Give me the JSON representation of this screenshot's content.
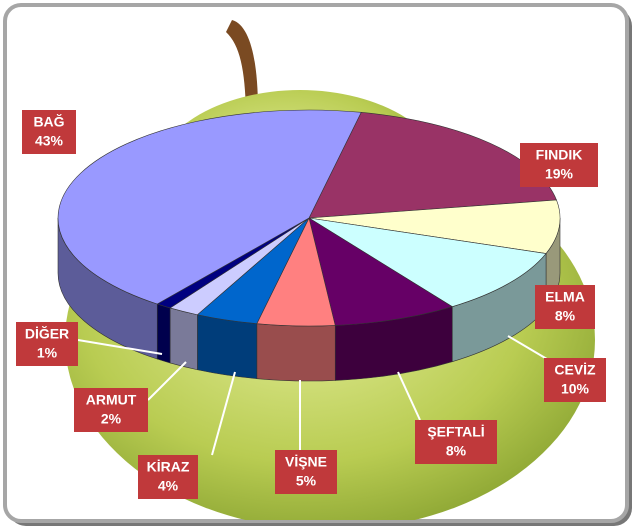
{
  "chart_data": {
    "type": "pie3d",
    "categories": [
      "FINDIK",
      "ELMA",
      "CEVİZ",
      "ŞEFTALİ",
      "VİŞNE",
      "KİRAZ",
      "ARMUT",
      "DİĞER",
      "BAĞ"
    ],
    "values": [
      19,
      8,
      10,
      8,
      5,
      4,
      2,
      1,
      43
    ],
    "value_labels": [
      "19%",
      "8%",
      "10%",
      "8%",
      "5%",
      "4%",
      "2%",
      "1%",
      "43%"
    ],
    "colors": [
      "#993366",
      "#ffffcc",
      "#ccffff",
      "#660066",
      "#ff8080",
      "#0066cc",
      "#ccccff",
      "#000080",
      "#9999ff"
    ]
  }
}
